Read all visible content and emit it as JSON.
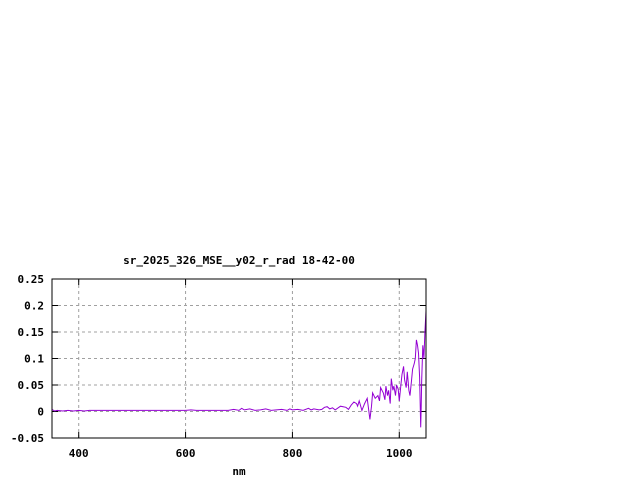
{
  "chart_data": {
    "type": "line",
    "title": "sr_2025_326_MSE__y02_r_rad 18-42-00",
    "xlabel": "nm",
    "ylabel": "",
    "xlim": [
      350,
      1050
    ],
    "ylim": [
      -0.05,
      0.25
    ],
    "xticks": [
      400,
      600,
      800,
      1000
    ],
    "xtick_labels": [
      "400",
      "600",
      "800",
      "1000"
    ],
    "yticks": [
      -0.05,
      0,
      0.05,
      0.1,
      0.15,
      0.2,
      0.25
    ],
    "ytick_labels": [
      "-0.05",
      "0",
      "0.05",
      "0.1",
      "0.15",
      "0.2",
      "0.25"
    ],
    "grid": true,
    "series_color": "#9400d3",
    "series": [
      {
        "x": [
          350,
          355,
          360,
          370,
          380,
          390,
          400,
          410,
          420,
          430,
          440,
          450,
          460,
          470,
          480,
          490,
          500,
          520,
          540,
          560,
          580,
          600,
          610,
          620,
          640,
          660,
          680,
          690,
          700,
          705,
          710,
          720,
          730,
          740,
          750,
          760,
          770,
          780,
          790,
          795,
          800,
          810,
          820,
          830,
          835,
          840,
          850,
          855,
          860,
          865,
          870,
          875,
          880,
          890,
          900,
          905,
          910,
          915,
          920,
          922,
          925,
          930,
          935,
          940,
          945,
          948,
          950,
          955,
          960,
          963,
          965,
          970,
          973,
          975,
          978,
          980,
          983,
          985,
          988,
          990,
          993,
          995,
          998,
          1000,
          1003,
          1005,
          1008,
          1010,
          1013,
          1015,
          1018,
          1020,
          1023,
          1025,
          1028,
          1030,
          1032,
          1034,
          1036,
          1038,
          1040,
          1041,
          1042,
          1044,
          1046,
          1048,
          1050
        ],
        "y": [
          0.004,
          0.001,
          0.002,
          0.001,
          0.002,
          0.001,
          0.002,
          0.001,
          0.002,
          0.002,
          0.002,
          0.002,
          0.002,
          0.002,
          0.002,
          0.002,
          0.002,
          0.002,
          0.002,
          0.002,
          0.002,
          0.002,
          0.003,
          0.002,
          0.002,
          0.002,
          0.002,
          0.004,
          0.002,
          0.006,
          0.003,
          0.005,
          0.002,
          0.003,
          0.005,
          0.002,
          0.003,
          0.004,
          0.002,
          0.005,
          0.003,
          0.004,
          0.002,
          0.006,
          0.003,
          0.005,
          0.003,
          0.004,
          0.008,
          0.009,
          0.005,
          0.007,
          0.003,
          0.01,
          0.008,
          0.004,
          0.012,
          0.018,
          0.015,
          0.01,
          0.02,
          0.002,
          0.015,
          0.025,
          -0.015,
          0.01,
          0.035,
          0.025,
          0.03,
          0.02,
          0.045,
          0.035,
          0.022,
          0.048,
          0.03,
          0.04,
          0.015,
          0.062,
          0.04,
          0.048,
          0.03,
          0.05,
          0.042,
          0.02,
          0.05,
          0.07,
          0.085,
          0.06,
          0.045,
          0.075,
          0.04,
          0.03,
          0.06,
          0.08,
          0.09,
          0.1,
          0.135,
          0.125,
          0.11,
          0.065,
          -0.03,
          0.01,
          0.06,
          0.125,
          0.1,
          0.15,
          0.19
        ]
      }
    ]
  }
}
